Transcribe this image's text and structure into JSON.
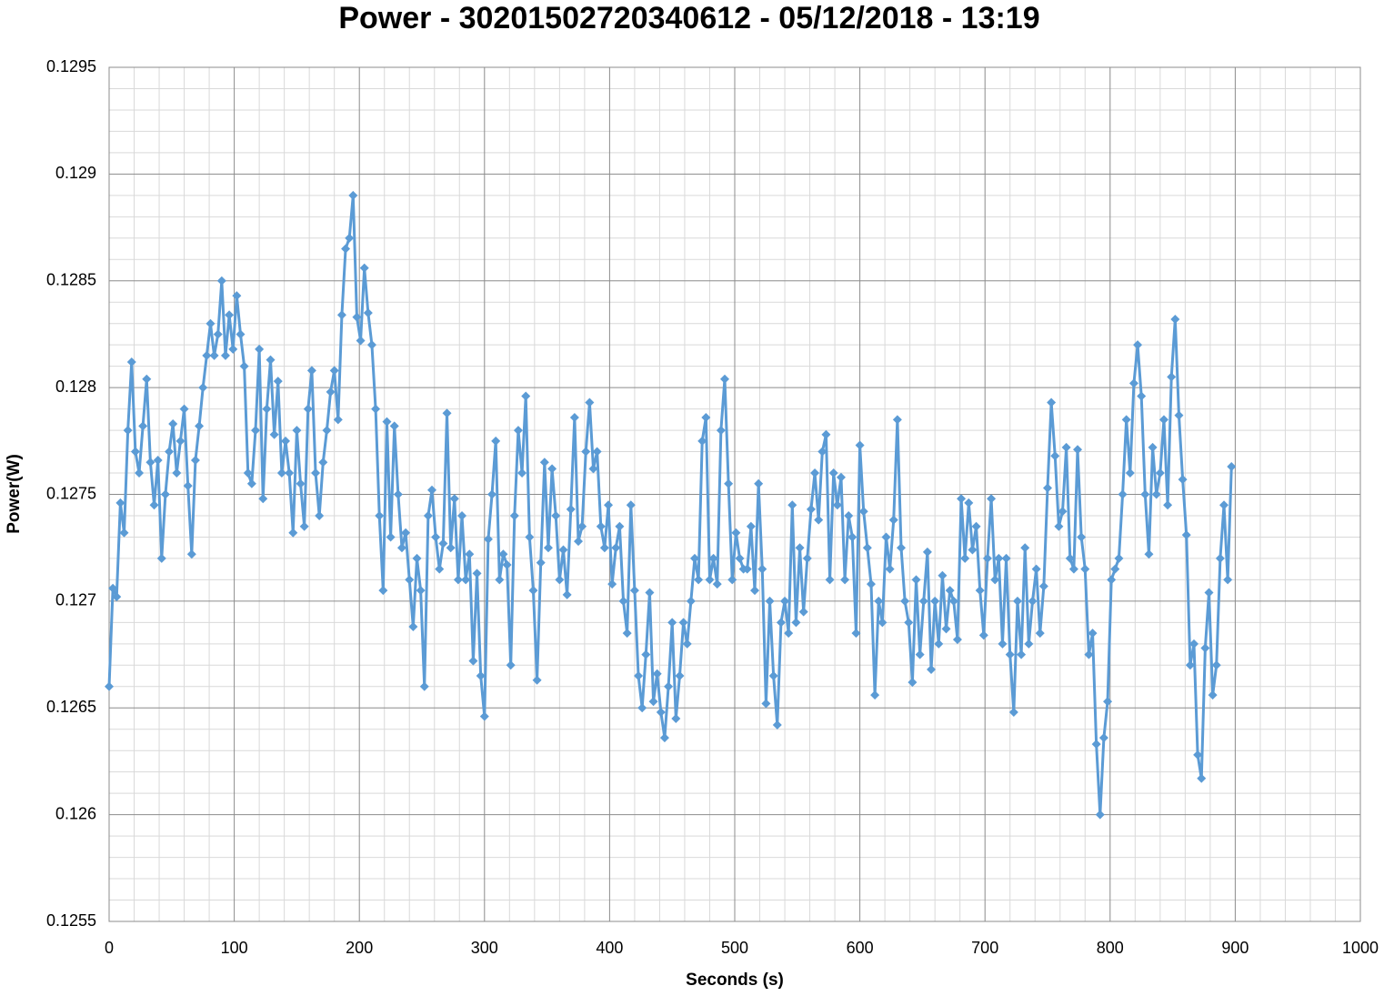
{
  "chart_data": {
    "type": "line",
    "title": "Power - 30201502720340612 - 05/12/2018 - 13:19",
    "x_label": "Seconds (s)",
    "y_label": "Power(W)",
    "color": "#5b9bd5",
    "marker": "diamond",
    "grid": true,
    "xlim": [
      0,
      1000
    ],
    "xticks": [
      0,
      100,
      200,
      300,
      400,
      500,
      600,
      700,
      800,
      900,
      1000
    ],
    "ylim": [
      0.1255,
      0.1295
    ],
    "yticks": [
      0.1255,
      0.126,
      0.1265,
      0.127,
      0.1275,
      0.128,
      0.1285,
      0.129,
      0.1295
    ],
    "x": [
      0,
      3,
      6,
      9,
      12,
      15,
      18,
      21,
      24,
      27,
      30,
      33,
      36,
      39,
      42,
      45,
      48,
      51,
      54,
      57,
      60,
      63,
      66,
      69,
      72,
      75,
      78,
      81,
      84,
      87,
      90,
      93,
      96,
      99,
      102,
      105,
      108,
      111,
      114,
      117,
      120,
      123,
      126,
      129,
      132,
      135,
      138,
      141,
      144,
      147,
      150,
      153,
      156,
      159,
      162,
      165,
      168,
      171,
      174,
      177,
      180,
      183,
      186,
      189,
      192,
      195,
      198,
      201,
      204,
      207,
      210,
      213,
      216,
      219,
      222,
      225,
      228,
      231,
      234,
      237,
      240,
      243,
      246,
      249,
      252,
      255,
      258,
      261,
      264,
      267,
      270,
      273,
      276,
      279,
      282,
      285,
      288,
      291,
      294,
      297,
      300,
      303,
      306,
      309,
      312,
      315,
      318,
      321,
      324,
      327,
      330,
      333,
      336,
      339,
      342,
      345,
      348,
      351,
      354,
      357,
      360,
      363,
      366,
      369,
      372,
      375,
      378,
      381,
      384,
      387,
      390,
      393,
      396,
      399,
      402,
      405,
      408,
      411,
      414,
      417,
      420,
      423,
      426,
      429,
      432,
      435,
      438,
      441,
      444,
      447,
      450,
      453,
      456,
      459,
      462,
      465,
      468,
      471,
      474,
      477,
      480,
      483,
      486,
      489,
      492,
      495,
      498,
      501,
      504,
      507,
      510,
      513,
      516,
      519,
      522,
      525,
      528,
      531,
      534,
      537,
      540,
      543,
      546,
      549,
      552,
      555,
      558,
      561,
      564,
      567,
      570,
      573,
      576,
      579,
      582,
      585,
      588,
      591,
      594,
      597,
      600,
      603,
      606,
      609,
      612,
      615,
      618,
      621,
      624,
      627,
      630,
      633,
      636,
      639,
      642,
      645,
      648,
      651,
      654,
      657,
      660,
      663,
      666,
      669,
      672,
      675,
      678,
      681,
      684,
      687,
      690,
      693,
      696,
      699,
      702,
      705,
      708,
      711,
      714,
      717,
      720,
      723,
      726,
      729,
      732,
      735,
      738,
      741,
      744,
      747,
      750,
      753,
      756,
      759,
      762,
      765,
      768,
      771,
      774,
      777,
      780,
      783,
      786,
      789,
      792,
      795,
      798,
      801,
      804,
      807,
      810,
      813,
      816,
      819,
      822,
      825,
      828,
      831,
      834,
      837,
      840,
      843,
      846,
      849,
      852,
      855,
      858,
      861,
      864,
      867,
      870,
      873,
      876,
      879,
      882,
      885,
      888,
      891,
      894,
      897
    ],
    "values": [
      0.1266,
      0.12706,
      0.12702,
      0.12746,
      0.12732,
      0.1278,
      0.12812,
      0.1277,
      0.1276,
      0.12782,
      0.12804,
      0.12765,
      0.12745,
      0.12766,
      0.1272,
      0.1275,
      0.1277,
      0.12783,
      0.1276,
      0.12775,
      0.1279,
      0.12754,
      0.12722,
      0.12766,
      0.12782,
      0.128,
      0.12815,
      0.1283,
      0.12815,
      0.12825,
      0.1285,
      0.12815,
      0.12834,
      0.12818,
      0.12843,
      0.12825,
      0.1281,
      0.1276,
      0.12755,
      0.1278,
      0.12818,
      0.12748,
      0.1279,
      0.12813,
      0.12778,
      0.12803,
      0.1276,
      0.12775,
      0.1276,
      0.12732,
      0.1278,
      0.12755,
      0.12735,
      0.1279,
      0.12808,
      0.1276,
      0.1274,
      0.12765,
      0.1278,
      0.12798,
      0.12808,
      0.12785,
      0.12834,
      0.12865,
      0.1287,
      0.1289,
      0.12833,
      0.12822,
      0.12856,
      0.12835,
      0.1282,
      0.1279,
      0.1274,
      0.12705,
      0.12784,
      0.1273,
      0.12782,
      0.1275,
      0.12725,
      0.12732,
      0.1271,
      0.12688,
      0.1272,
      0.12705,
      0.1266,
      0.1274,
      0.12752,
      0.1273,
      0.12715,
      0.12727,
      0.12788,
      0.12725,
      0.12748,
      0.1271,
      0.1274,
      0.1271,
      0.12722,
      0.12672,
      0.12713,
      0.12665,
      0.12646,
      0.12729,
      0.1275,
      0.12775,
      0.1271,
      0.12722,
      0.12717,
      0.1267,
      0.1274,
      0.1278,
      0.1276,
      0.12796,
      0.1273,
      0.12705,
      0.12663,
      0.12718,
      0.12765,
      0.12725,
      0.12762,
      0.1274,
      0.1271,
      0.12724,
      0.12703,
      0.12743,
      0.12786,
      0.12728,
      0.12735,
      0.1277,
      0.12793,
      0.12762,
      0.1277,
      0.12735,
      0.12725,
      0.12745,
      0.12708,
      0.12725,
      0.12735,
      0.127,
      0.12685,
      0.12745,
      0.12705,
      0.12665,
      0.1265,
      0.12675,
      0.12704,
      0.12653,
      0.12666,
      0.12648,
      0.12636,
      0.1266,
      0.1269,
      0.12645,
      0.12665,
      0.1269,
      0.1268,
      0.127,
      0.1272,
      0.1271,
      0.12775,
      0.12786,
      0.1271,
      0.1272,
      0.12708,
      0.1278,
      0.12804,
      0.12755,
      0.1271,
      0.12732,
      0.1272,
      0.12715,
      0.12715,
      0.12735,
      0.12705,
      0.12755,
      0.12715,
      0.12652,
      0.127,
      0.12665,
      0.12642,
      0.1269,
      0.127,
      0.12685,
      0.12745,
      0.1269,
      0.12725,
      0.12695,
      0.1272,
      0.12743,
      0.1276,
      0.12738,
      0.1277,
      0.12778,
      0.1271,
      0.1276,
      0.12745,
      0.12758,
      0.1271,
      0.1274,
      0.1273,
      0.12685,
      0.12773,
      0.12742,
      0.12725,
      0.12708,
      0.12656,
      0.127,
      0.1269,
      0.1273,
      0.12715,
      0.12738,
      0.12785,
      0.12725,
      0.127,
      0.1269,
      0.12662,
      0.1271,
      0.12675,
      0.127,
      0.12723,
      0.12668,
      0.127,
      0.1268,
      0.12712,
      0.12687,
      0.12705,
      0.127,
      0.12682,
      0.12748,
      0.1272,
      0.12746,
      0.12724,
      0.12735,
      0.12705,
      0.12684,
      0.1272,
      0.12748,
      0.1271,
      0.1272,
      0.1268,
      0.1272,
      0.12675,
      0.12648,
      0.127,
      0.12675,
      0.12725,
      0.1268,
      0.127,
      0.12715,
      0.12685,
      0.12707,
      0.12753,
      0.12793,
      0.12768,
      0.12735,
      0.12742,
      0.12772,
      0.1272,
      0.12715,
      0.12771,
      0.1273,
      0.12715,
      0.12675,
      0.12685,
      0.12633,
      0.126,
      0.12636,
      0.12653,
      0.1271,
      0.12715,
      0.1272,
      0.1275,
      0.12785,
      0.1276,
      0.12802,
      0.1282,
      0.12796,
      0.1275,
      0.12722,
      0.12772,
      0.1275,
      0.1276,
      0.12785,
      0.12745,
      0.12805,
      0.12832,
      0.12787,
      0.12757,
      0.12731,
      0.1267,
      0.1268,
      0.12628,
      0.12617,
      0.12678,
      0.12704,
      0.12656,
      0.1267,
      0.1272,
      0.12745,
      0.1271,
      0.12763
    ]
  }
}
